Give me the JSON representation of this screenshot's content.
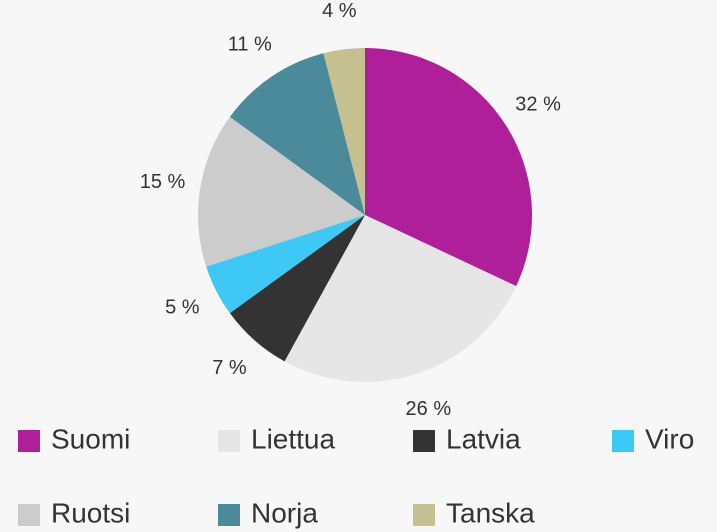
{
  "chart_data": {
    "type": "pie",
    "categories": [
      "Suomi",
      "Liettua",
      "Latvia",
      "Viro",
      "Ruotsi",
      "Norja",
      "Tanska"
    ],
    "values": [
      32,
      26,
      7,
      5,
      15,
      11,
      4
    ],
    "value_labels": [
      "32 %",
      "26 %",
      "7 %",
      "5 %",
      "15 %",
      "11 %",
      "4 %"
    ],
    "colors": [
      "#b01f9a",
      "#e6e6e6",
      "#333333",
      "#3ec8f5",
      "#cccccc",
      "#4a8a9a",
      "#c5c08f"
    ],
    "legend": "bottom"
  }
}
